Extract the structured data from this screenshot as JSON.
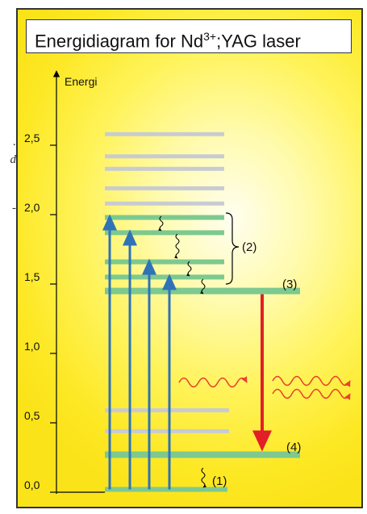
{
  "title": {
    "prefix": "Energidiagram for Nd",
    "superscript": "3+",
    "suffix": ";YAG laser"
  },
  "margin_fragments": [
    ".",
    "d",
    "-"
  ],
  "diagram": {
    "y_axis_label": "Energi",
    "ticks": [
      "0,0",
      "0,5",
      "1,0",
      "1,5",
      "2,0",
      "2,5"
    ],
    "level_labels": {
      "pump_band": "(2)",
      "upper_laser_level": "(3)",
      "lower_laser_level": "(4)",
      "ground_relaxation": "(1)"
    },
    "levels": [
      {
        "energy": 0.02,
        "kind": "green"
      },
      {
        "energy": 0.27,
        "kind": "green"
      },
      {
        "energy": 0.44,
        "kind": "grey"
      },
      {
        "energy": 0.59,
        "kind": "grey"
      },
      {
        "energy": 1.45,
        "kind": "green"
      },
      {
        "energy": 1.55,
        "kind": "green"
      },
      {
        "energy": 1.66,
        "kind": "green"
      },
      {
        "energy": 1.87,
        "kind": "green"
      },
      {
        "energy": 1.98,
        "kind": "green"
      },
      {
        "energy": 2.08,
        "kind": "grey"
      },
      {
        "energy": 2.19,
        "kind": "grey"
      },
      {
        "energy": 2.33,
        "kind": "grey"
      },
      {
        "energy": 2.42,
        "kind": "grey"
      },
      {
        "energy": 2.58,
        "kind": "grey"
      }
    ],
    "pump_transitions": [
      {
        "from": 0.02,
        "to": 1.98
      },
      {
        "from": 0.02,
        "to": 1.87
      },
      {
        "from": 0.02,
        "to": 1.66
      },
      {
        "from": 0.02,
        "to": 1.55
      }
    ],
    "laser_transition": {
      "from": 1.45,
      "to": 0.27
    },
    "colors": {
      "green_level": "#7dc98f",
      "grey_level": "#c8cbd2",
      "pump_arrow": "#2f72b8",
      "laser_arrow": "#e21f26",
      "photon_wave": "#e8402a"
    }
  }
}
